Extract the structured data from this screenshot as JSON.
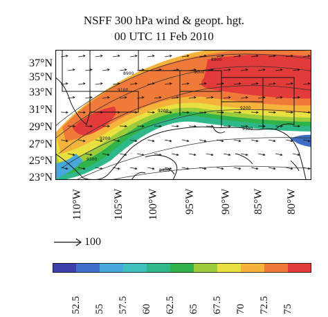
{
  "title_line1": "NSFF 300 hPa wind & geopt. hgt.",
  "title_line2": "00 UTC 11 Feb 2010",
  "lat_labels": [
    "37°N",
    "35°N",
    "33°N",
    "31°N",
    "29°N",
    "27°N",
    "25°N",
    "23°N"
  ],
  "lon_labels": [
    "110°W",
    "105°W",
    "100°W",
    "95°W",
    "90°W",
    "85°W",
    "80°W"
  ],
  "contour_labels": [
    "8900",
    "9000",
    "9100",
    "9200",
    "9300",
    "9400"
  ],
  "reference_vector": {
    "label": "100"
  },
  "colorbar": {
    "ticks": [
      "52.5",
      "55",
      "57.5",
      "60",
      "62.5",
      "65",
      "67.5",
      "70",
      "72.5",
      "75"
    ],
    "colors": [
      "#3b3fa6",
      "#3e6fc6",
      "#48a8dc",
      "#3fc1c0",
      "#2fb98a",
      "#2fb34a",
      "#9ccc3c",
      "#e8e040",
      "#f5b33c",
      "#f07a3a",
      "#e33a3a"
    ]
  },
  "colors": {
    "land_border": "#111111",
    "wind_vector": "#111111",
    "contour": "#333333"
  }
}
